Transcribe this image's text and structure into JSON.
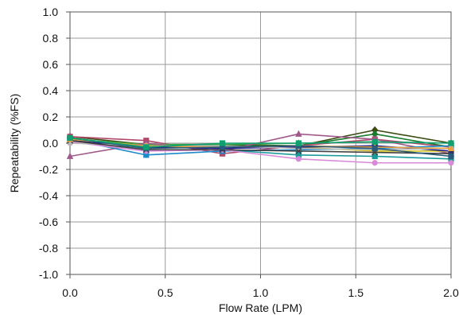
{
  "chart_data": {
    "type": "line",
    "title": "",
    "xlabel": "Flow Rate (LPM)",
    "ylabel": "Repeatability (%FS)",
    "xlim": [
      0.0,
      2.0
    ],
    "ylim": [
      -1.0,
      1.0
    ],
    "x_ticks": [
      0.0,
      0.5,
      1.0,
      1.5,
      2.0
    ],
    "x_tick_labels": [
      "0.0",
      "0.5",
      "1.0",
      "1.5",
      "2.0"
    ],
    "y_ticks": [
      1.0,
      0.8,
      0.6,
      0.4,
      0.2,
      0.0,
      -0.2,
      -0.4,
      -0.6,
      -0.8,
      -1.0
    ],
    "y_tick_labels": [
      "1.0",
      "0.8",
      "0.6",
      "0.4",
      "0.2",
      "0.0",
      "-0.2",
      "-0.4",
      "-0.6",
      "-0.8",
      "-1.0"
    ],
    "grid": true,
    "legend": "none",
    "x": [
      0.0,
      0.4,
      0.8,
      1.2,
      1.6,
      2.0
    ],
    "series": [
      {
        "color": "#3a4a10",
        "marker": "diamond",
        "values": [
          0.05,
          -0.01,
          -0.01,
          -0.02,
          0.1,
          0.0
        ]
      },
      {
        "color": "#1a7a2e",
        "marker": "diamond",
        "values": [
          0.04,
          -0.03,
          -0.02,
          -0.02,
          0.07,
          -0.03
        ]
      },
      {
        "color": "#b04a6a",
        "marker": "square",
        "values": [
          0.05,
          0.02,
          -0.08,
          -0.02,
          0.03,
          -0.03
        ]
      },
      {
        "color": "#3aa84a",
        "marker": "triangle",
        "values": [
          0.03,
          -0.01,
          -0.01,
          0.0,
          0.01,
          0.0
        ]
      },
      {
        "color": "#a05a8a",
        "marker": "triangle",
        "values": [
          -0.1,
          0.0,
          -0.06,
          0.07,
          0.03,
          -0.08
        ]
      },
      {
        "color": "#1a8ac8",
        "marker": "square",
        "values": [
          0.03,
          -0.09,
          -0.06,
          -0.05,
          -0.04,
          -0.02
        ]
      },
      {
        "color": "#1a9a9a",
        "marker": "square",
        "values": [
          0.03,
          -0.05,
          -0.05,
          -0.09,
          -0.1,
          -0.12
        ]
      },
      {
        "color": "#d88ad8",
        "marker": "circle",
        "values": [
          0.01,
          -0.06,
          -0.05,
          -0.12,
          -0.15,
          -0.15
        ]
      },
      {
        "color": "#d8c820",
        "marker": "circle",
        "values": [
          0.02,
          -0.02,
          -0.03,
          -0.03,
          -0.06,
          -0.06
        ]
      },
      {
        "color": "#1a1a8a",
        "marker": "square",
        "values": [
          0.02,
          -0.03,
          -0.04,
          -0.03,
          -0.02,
          -0.06
        ]
      },
      {
        "color": "#b8b8b8",
        "marker": "circle",
        "values": [
          0.0,
          -0.02,
          -0.02,
          -0.04,
          -0.05,
          -0.04
        ]
      },
      {
        "color": "#404040",
        "marker": "x",
        "values": [
          0.02,
          -0.05,
          -0.05,
          -0.06,
          -0.07,
          -0.08
        ]
      },
      {
        "color": "#e8a040",
        "marker": "triangle",
        "values": [
          0.03,
          -0.02,
          -0.03,
          -0.02,
          -0.03,
          -0.04
        ]
      },
      {
        "color": "#2a5a7a",
        "marker": "square",
        "values": [
          0.04,
          -0.04,
          -0.03,
          -0.02,
          -0.04,
          -0.1
        ]
      },
      {
        "color": "#10a070",
        "marker": "square",
        "values": [
          0.04,
          -0.03,
          0.0,
          0.0,
          0.01,
          0.0
        ]
      }
    ]
  }
}
